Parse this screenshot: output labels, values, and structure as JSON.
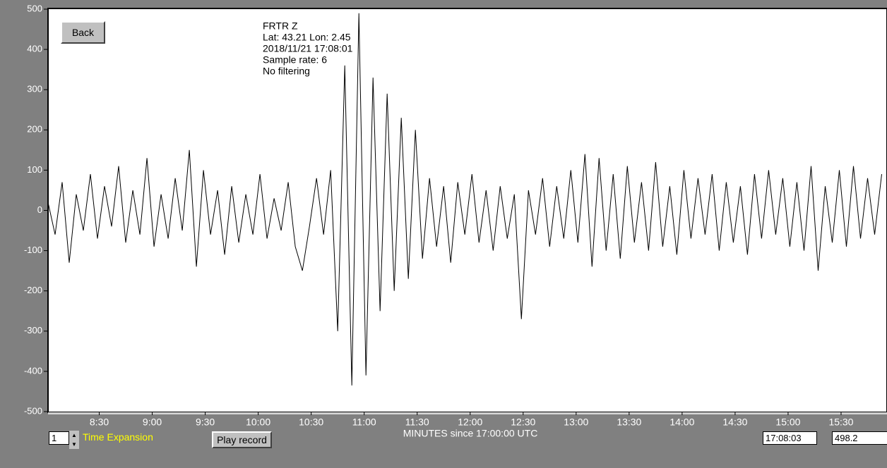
{
  "buttons": {
    "back": "Back",
    "play": "Play record"
  },
  "controls": {
    "expansion_value": "1",
    "expansion_label": "Time Expansion",
    "time_box": "17:08:03",
    "value_box": "498.2"
  },
  "chart_data": {
    "type": "line",
    "annotations": [
      "FRTR  Z",
      "Lat: 43.21 Lon: 2.45",
      "2018/11/21 17:08:01",
      "Sample rate: 6",
      "No filtering"
    ],
    "xlabel": "MINUTES since 17:00:00 UTC",
    "color": "#000000",
    "xlim": [
      481,
      956
    ],
    "ylim": [
      -500,
      500
    ],
    "yticks": [
      500,
      400,
      300,
      200,
      100,
      0,
      -100,
      -200,
      -300,
      -400,
      -500
    ],
    "xticks": [
      {
        "value": 510,
        "label": "8:30"
      },
      {
        "value": 540,
        "label": "9:00"
      },
      {
        "value": 570,
        "label": "9:30"
      },
      {
        "value": 600,
        "label": "10:00"
      },
      {
        "value": 630,
        "label": "10:30"
      },
      {
        "value": 660,
        "label": "11:00"
      },
      {
        "value": 690,
        "label": "11:30"
      },
      {
        "value": 720,
        "label": "12:00"
      },
      {
        "value": 750,
        "label": "12:30"
      },
      {
        "value": 780,
        "label": "13:00"
      },
      {
        "value": 810,
        "label": "13:30"
      },
      {
        "value": 840,
        "label": "14:00"
      },
      {
        "value": 870,
        "label": "14:30"
      },
      {
        "value": 900,
        "label": "15:00"
      },
      {
        "value": 930,
        "label": "15:30"
      }
    ],
    "x": [
      481,
      485,
      489,
      493,
      497,
      501,
      505,
      509,
      513,
      517,
      521,
      525,
      529,
      533,
      537,
      541,
      545,
      549,
      553,
      557,
      561,
      565,
      569,
      573,
      577,
      581,
      585,
      589,
      593,
      597,
      601,
      605,
      609,
      613,
      617,
      621,
      625,
      629,
      633,
      637,
      641,
      645,
      649,
      653,
      657,
      661,
      665,
      669,
      673,
      677,
      681,
      685,
      689,
      693,
      697,
      701,
      705,
      709,
      713,
      717,
      721,
      725,
      729,
      733,
      737,
      741,
      745,
      749,
      753,
      757,
      761,
      765,
      769,
      773,
      777,
      781,
      785,
      789,
      793,
      797,
      801,
      805,
      809,
      813,
      817,
      821,
      825,
      829,
      833,
      837,
      841,
      845,
      849,
      853,
      857,
      861,
      865,
      869,
      873,
      877,
      881,
      885,
      889,
      893,
      897,
      901,
      905,
      909,
      913,
      917,
      921,
      925,
      929,
      933,
      937,
      941,
      945,
      949,
      953
    ],
    "values": [
      20,
      -60,
      70,
      -130,
      40,
      -50,
      90,
      -70,
      60,
      -40,
      110,
      -80,
      50,
      -60,
      130,
      -90,
      40,
      -70,
      80,
      -50,
      150,
      -140,
      100,
      -60,
      50,
      -110,
      60,
      -80,
      40,
      -60,
      90,
      -70,
      30,
      -50,
      70,
      -90,
      -150,
      -40,
      80,
      -60,
      100,
      -300,
      360,
      -435,
      490,
      -410,
      330,
      -250,
      290,
      -200,
      230,
      -170,
      200,
      -120,
      80,
      -90,
      60,
      -130,
      70,
      -60,
      90,
      -80,
      50,
      -100,
      60,
      -70,
      40,
      -270,
      50,
      -60,
      80,
      -90,
      60,
      -70,
      100,
      -80,
      140,
      -140,
      130,
      -100,
      90,
      -120,
      110,
      -80,
      70,
      -100,
      120,
      -90,
      60,
      -110,
      100,
      -70,
      80,
      -60,
      90,
      -100,
      70,
      -80,
      60,
      -110,
      90,
      -70,
      100,
      -60,
      80,
      -90,
      70,
      -100,
      110,
      -150,
      60,
      -80,
      100,
      -90,
      110,
      -70,
      80,
      -60,
      90
    ]
  }
}
